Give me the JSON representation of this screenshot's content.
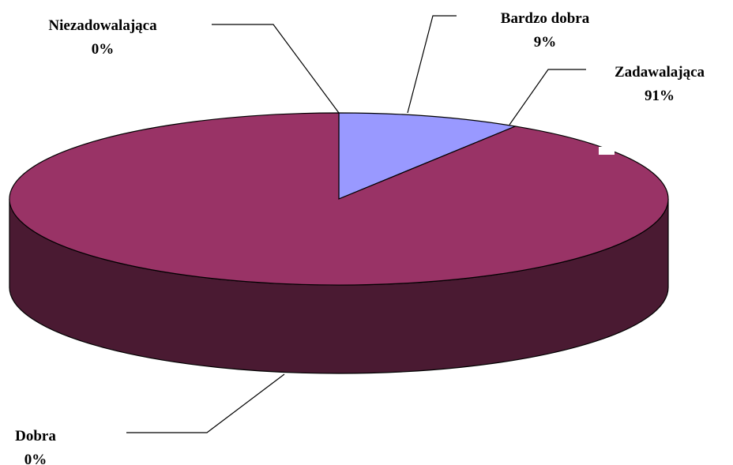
{
  "chart_data": {
    "type": "pie",
    "three_d": true,
    "start_angle_deg": 90,
    "direction": "clockwise",
    "colors": {
      "Bardzo dobra": "#9999FF",
      "Zadawalająca": "#993366",
      "side_dark": "#4A1A32",
      "outline": "#000000"
    },
    "slices": [
      {
        "label": "Bardzo dobra",
        "value": 9,
        "percent": "9%"
      },
      {
        "label": "Zadawalająca",
        "value": 91,
        "percent": "91%"
      },
      {
        "label": "Dobra",
        "value": 0,
        "percent": "0%"
      },
      {
        "label": "Niezadowalająca",
        "value": 0,
        "percent": "0%"
      }
    ]
  }
}
